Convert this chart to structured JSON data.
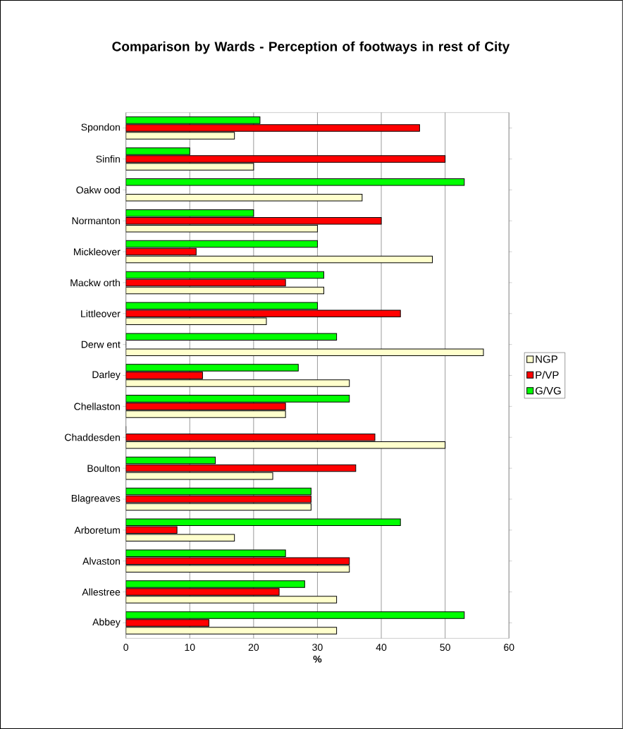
{
  "chart_data": {
    "type": "bar",
    "orientation": "horizontal",
    "title": "Comparison by Wards - Perception of footways in rest of City",
    "xlabel": "%",
    "categories": [
      "Spondon",
      "Sinfin",
      "Oakw ood",
      "Normanton",
      "Mickleover",
      "Mackw orth",
      "Littleover",
      "Derw ent",
      "Darley",
      "Chellaston",
      "Chaddesden",
      "Boulton",
      "Blagreaves",
      "Arboretum",
      "Alvaston",
      "Allestree",
      "Abbey"
    ],
    "series": [
      {
        "name": "NGP",
        "color": "#ffffcc",
        "values": [
          17,
          20,
          37,
          30,
          48,
          31,
          22,
          56,
          35,
          25,
          50,
          23,
          29,
          17,
          35,
          33,
          33
        ]
      },
      {
        "name": "P/VP",
        "color": "#ff0000",
        "values": [
          46,
          50,
          0,
          40,
          11,
          25,
          43,
          0,
          12,
          25,
          39,
          36,
          29,
          8,
          35,
          24,
          13
        ]
      },
      {
        "name": "G/VG",
        "color": "#00ff00",
        "values": [
          21,
          10,
          53,
          20,
          30,
          31,
          30,
          33,
          27,
          35,
          0,
          14,
          29,
          43,
          25,
          28,
          53
        ]
      }
    ],
    "xlim": [
      0,
      60
    ],
    "xticks": [
      0,
      10,
      20,
      30,
      40,
      50,
      60
    ],
    "grid": "x",
    "legend": "right"
  }
}
